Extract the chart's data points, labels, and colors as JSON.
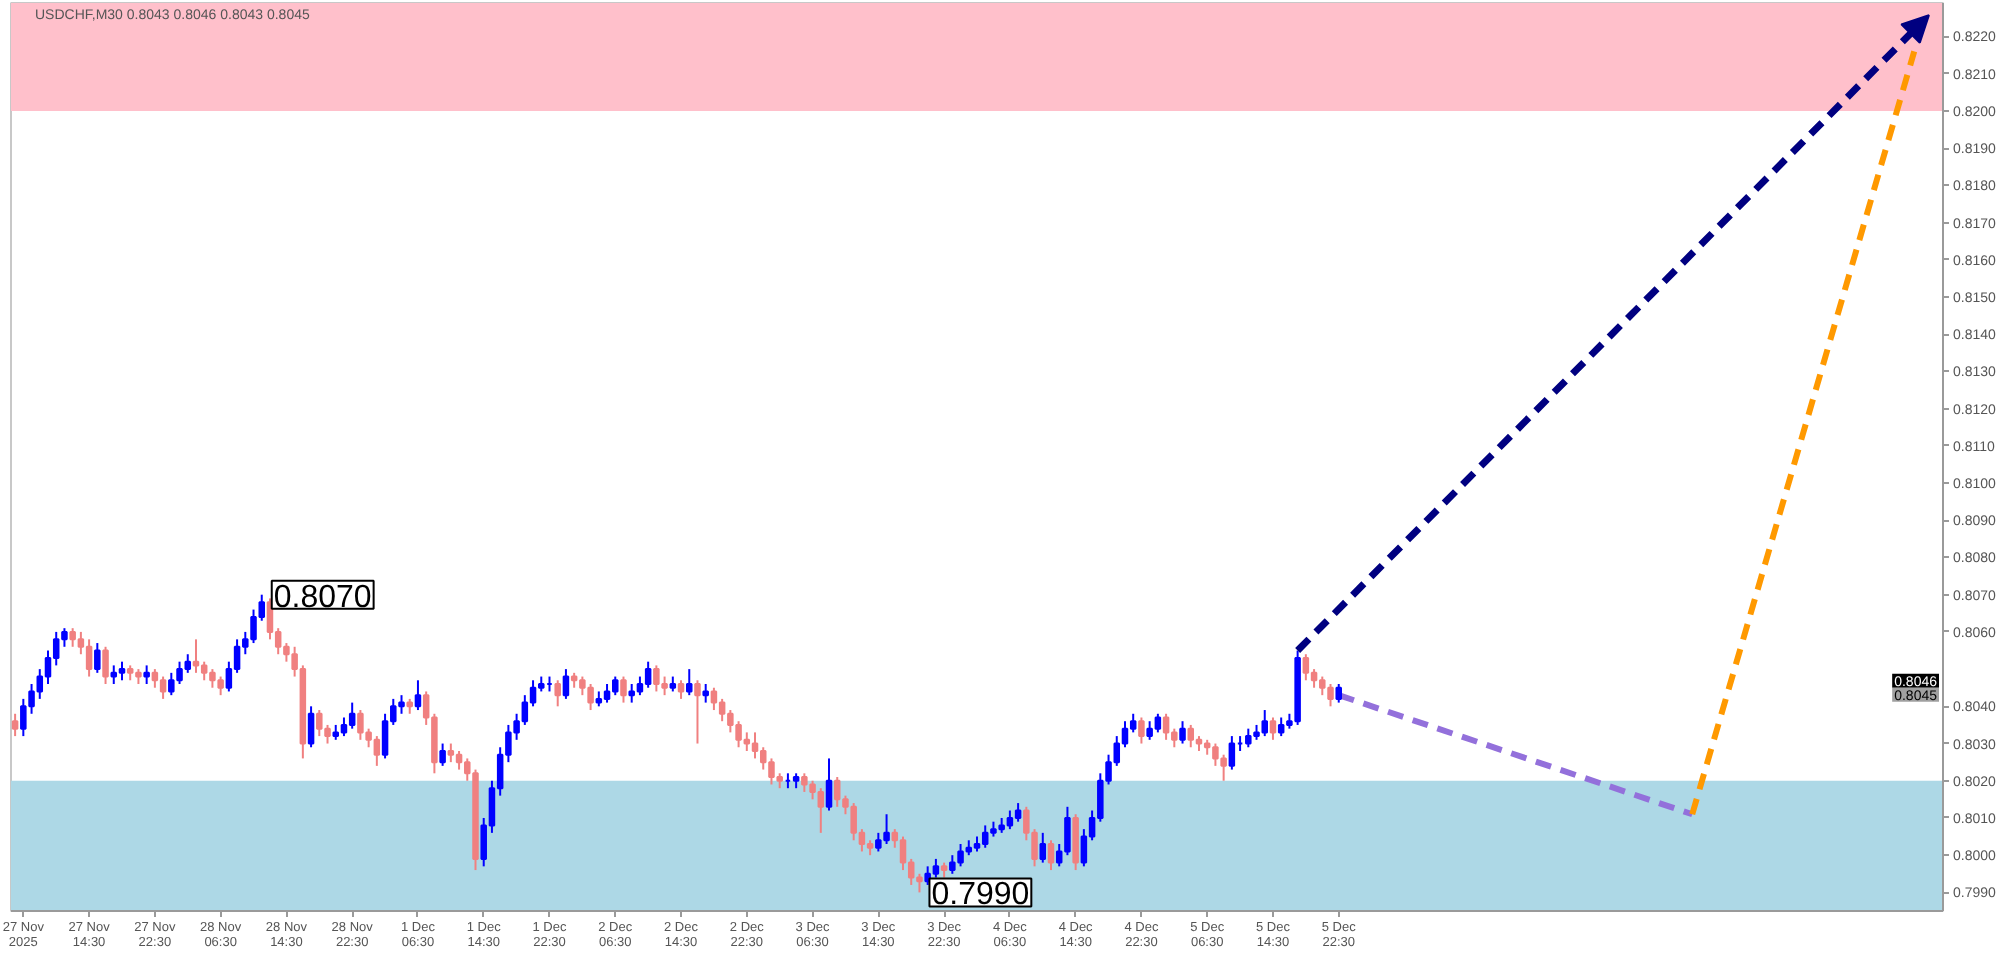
{
  "chart_data": {
    "type": "candlestick",
    "title": "USDCHF,M30 0.8043 0.8046 0.8043 0.8045",
    "categories": [
      null,
      "27 Nov 2025",
      null,
      null,
      null,
      null,
      null,
      null,
      null,
      "27 Nov 14:30",
      null,
      null,
      null,
      null,
      null,
      null,
      null,
      "27 Nov 22:30",
      null,
      null,
      null,
      null,
      null,
      null,
      null,
      "28 Nov 06:30",
      null,
      null,
      null,
      null,
      null,
      null,
      null,
      "28 Nov 14:30",
      null,
      null,
      null,
      null,
      null,
      null,
      null,
      "28 Nov 22:30",
      null,
      null,
      null,
      null,
      null,
      null,
      null,
      "1 Dec 06:30",
      null,
      null,
      null,
      null,
      null,
      null,
      null,
      "1 Dec 14:30",
      null,
      null,
      null,
      null,
      null,
      null,
      null,
      "1 Dec 22:30",
      null,
      null,
      null,
      null,
      null,
      null,
      null,
      "2 Dec 06:30",
      null,
      null,
      null,
      null,
      null,
      null,
      null,
      "2 Dec 14:30",
      null,
      null,
      null,
      null,
      null,
      null,
      null,
      "2 Dec 22:30",
      null,
      null,
      null,
      null,
      null,
      null,
      null,
      "3 Dec 06:30",
      null,
      null,
      null,
      null,
      null,
      null,
      null,
      "3 Dec 14:30",
      null,
      null,
      null,
      null,
      null,
      null,
      null,
      "3 Dec 22:30",
      null,
      null,
      null,
      null,
      null,
      null,
      null,
      "4 Dec 06:30",
      null,
      null,
      null,
      null,
      null,
      null,
      null,
      "4 Dec 14:30",
      null,
      null,
      null,
      null,
      null,
      null,
      null,
      "4 Dec 22:30",
      null,
      null,
      null,
      null,
      null,
      null,
      null,
      "5 Dec 06:30",
      null,
      null,
      null,
      null,
      null,
      null,
      null,
      "5 Dec 14:30",
      null,
      null,
      null,
      null,
      null,
      null,
      null,
      "5 Dec 22:30",
      null,
      null,
      null,
      null,
      null,
      null,
      null,
      null,
      null,
      null,
      null,
      null,
      null,
      null,
      null,
      null,
      null,
      null,
      null,
      null,
      null,
      null,
      null,
      null,
      null,
      null,
      null,
      null,
      null,
      null,
      null,
      null,
      null,
      null,
      null,
      null,
      null,
      null,
      null,
      null,
      null,
      null,
      null,
      null,
      null,
      null,
      null,
      null,
      null,
      null,
      null,
      null,
      null,
      null,
      null,
      null,
      null,
      null,
      null,
      null,
      null,
      null,
      null,
      null,
      null,
      null,
      null,
      null,
      null,
      null,
      null,
      null,
      null
    ],
    "ylim": [
      0.7985,
      0.8229
    ],
    "yticks": [
      {
        "value": 0.799,
        "label": "0.7990"
      },
      {
        "value": 0.8,
        "label": "0.8000"
      },
      {
        "value": 0.801,
        "label": "0.8010"
      },
      {
        "value": 0.802,
        "label": "0.8020"
      },
      {
        "value": 0.803,
        "label": "0.8030"
      },
      {
        "value": 0.804,
        "label": "0.8040"
      },
      {
        "value": 0.806,
        "label": "0.8060"
      },
      {
        "value": 0.807,
        "label": "0.8070"
      },
      {
        "value": 0.808,
        "label": "0.8080"
      },
      {
        "value": 0.809,
        "label": "0.8090"
      },
      {
        "value": 0.81,
        "label": "0.8100"
      },
      {
        "value": 0.811,
        "label": "0.8110"
      },
      {
        "value": 0.812,
        "label": "0.8120"
      },
      {
        "value": 0.813,
        "label": "0.8130"
      },
      {
        "value": 0.814,
        "label": "0.8140"
      },
      {
        "value": 0.815,
        "label": "0.8150"
      },
      {
        "value": 0.816,
        "label": "0.8160"
      },
      {
        "value": 0.817,
        "label": "0.8170"
      },
      {
        "value": 0.818,
        "label": "0.8180"
      },
      {
        "value": 0.819,
        "label": "0.8190"
      },
      {
        "value": 0.82,
        "label": "0.8200"
      },
      {
        "value": 0.821,
        "label": "0.8210"
      },
      {
        "value": 0.822,
        "label": "0.8220"
      }
    ],
    "bands": [
      {
        "axis": "y",
        "from": 0.82,
        "to": 0.8229,
        "color": "#ffc0cb"
      },
      {
        "axis": "y",
        "from": 0.7985,
        "to": 0.802,
        "color": "#add8e6"
      }
    ],
    "annotations": [
      "0.8070",
      "0.7990",
      "0.8046",
      "0.8045"
    ],
    "series": [
      {
        "ohlc": [
          [
            0.8036,
            0.8038,
            0.8032,
            0.8034
          ],
          [
            0.8034,
            0.8042,
            0.8032,
            0.804
          ],
          [
            0.804,
            0.8046,
            0.8038,
            0.8044
          ],
          [
            0.8044,
            0.805,
            0.8042,
            0.8048
          ],
          [
            0.8048,
            0.8055,
            0.8046,
            0.8053
          ],
          [
            0.8053,
            0.806,
            0.8051,
            0.8058
          ],
          [
            0.8058,
            0.8061,
            0.8056,
            0.806
          ],
          [
            0.806,
            0.8061,
            0.8056,
            0.8058
          ],
          [
            0.8058,
            0.806,
            0.8054,
            0.8056
          ],
          [
            0.8056,
            0.8058,
            0.8048,
            0.805
          ],
          [
            0.805,
            0.8057,
            0.8049,
            0.8055
          ],
          [
            0.8055,
            0.8056,
            0.8046,
            0.8048
          ],
          [
            0.8048,
            0.8051,
            0.8046,
            0.8049
          ],
          [
            0.8049,
            0.8052,
            0.8047,
            0.805
          ],
          [
            0.805,
            0.8051,
            0.8047,
            0.8049
          ],
          [
            0.8049,
            0.805,
            0.8046,
            0.8048
          ],
          [
            0.8048,
            0.8051,
            0.8046,
            0.8049
          ],
          [
            0.8049,
            0.805,
            0.8045,
            0.8047
          ],
          [
            0.8047,
            0.8048,
            0.8042,
            0.8044
          ],
          [
            0.8044,
            0.8049,
            0.8043,
            0.8047
          ],
          [
            0.8047,
            0.8052,
            0.8046,
            0.805
          ],
          [
            0.805,
            0.8054,
            0.8049,
            0.8052
          ],
          [
            0.8052,
            0.8058,
            0.8049,
            0.8051
          ],
          [
            0.8051,
            0.8052,
            0.8047,
            0.8049
          ],
          [
            0.8049,
            0.805,
            0.8045,
            0.8047
          ],
          [
            0.8047,
            0.8048,
            0.8043,
            0.8045
          ],
          [
            0.8045,
            0.8052,
            0.8044,
            0.805
          ],
          [
            0.805,
            0.8058,
            0.8049,
            0.8056
          ],
          [
            0.8056,
            0.806,
            0.8054,
            0.8058
          ],
          [
            0.8058,
            0.8066,
            0.8057,
            0.8064
          ],
          [
            0.8064,
            0.807,
            0.8063,
            0.8068
          ],
          [
            0.8068,
            0.8069,
            0.8058,
            0.806
          ],
          [
            0.806,
            0.8061,
            0.8054,
            0.8056
          ],
          [
            0.8056,
            0.8057,
            0.8052,
            0.8054
          ],
          [
            0.8054,
            0.8056,
            0.8048,
            0.805
          ],
          [
            0.805,
            0.8051,
            0.8026,
            0.803
          ],
          [
            0.803,
            0.804,
            0.8029,
            0.8038
          ],
          [
            0.8038,
            0.8039,
            0.8032,
            0.8034
          ],
          [
            0.8034,
            0.8035,
            0.803,
            0.8032
          ],
          [
            0.8032,
            0.8035,
            0.8031,
            0.8033
          ],
          [
            0.8033,
            0.8037,
            0.8032,
            0.8035
          ],
          [
            0.8035,
            0.8041,
            0.8034,
            0.8038
          ],
          [
            0.8038,
            0.8039,
            0.8031,
            0.8033
          ],
          [
            0.8033,
            0.8034,
            0.8029,
            0.8031
          ],
          [
            0.8031,
            0.8032,
            0.8024,
            0.8027
          ],
          [
            0.8027,
            0.8038,
            0.8026,
            0.8036
          ],
          [
            0.8036,
            0.8042,
            0.8035,
            0.804
          ],
          [
            0.804,
            0.8043,
            0.8038,
            0.8041
          ],
          [
            0.8041,
            0.8042,
            0.8038,
            0.804
          ],
          [
            0.804,
            0.8047,
            0.8039,
            0.8043
          ],
          [
            0.8043,
            0.8044,
            0.8035,
            0.8037
          ],
          [
            0.8037,
            0.8038,
            0.8022,
            0.8025
          ],
          [
            0.8025,
            0.803,
            0.8024,
            0.8028
          ],
          [
            0.8028,
            0.803,
            0.8025,
            0.8027
          ],
          [
            0.8027,
            0.8028,
            0.8023,
            0.8025
          ],
          [
            0.8025,
            0.8026,
            0.802,
            0.8022
          ],
          [
            0.8022,
            0.8023,
            0.7996,
            0.7999
          ],
          [
            0.7999,
            0.801,
            0.7997,
            0.8008
          ],
          [
            0.8008,
            0.802,
            0.8006,
            0.8018
          ],
          [
            0.8018,
            0.8029,
            0.8016,
            0.8027
          ],
          [
            0.8027,
            0.8035,
            0.8025,
            0.8033
          ],
          [
            0.8033,
            0.8038,
            0.8031,
            0.8036
          ],
          [
            0.8036,
            0.8043,
            0.8035,
            0.8041
          ],
          [
            0.8041,
            0.8047,
            0.804,
            0.8045
          ],
          [
            0.8045,
            0.8048,
            0.8044,
            0.8046
          ],
          [
            0.8046,
            0.8048,
            0.8044,
            0.8046
          ],
          [
            0.8046,
            0.8047,
            0.804,
            0.8043
          ],
          [
            0.8043,
            0.805,
            0.8042,
            0.8048
          ],
          [
            0.8048,
            0.8049,
            0.8045,
            0.8047
          ],
          [
            0.8047,
            0.8048,
            0.8043,
            0.8045
          ],
          [
            0.8045,
            0.8046,
            0.8039,
            0.8041
          ],
          [
            0.8041,
            0.8044,
            0.804,
            0.8042
          ],
          [
            0.8042,
            0.8046,
            0.8041,
            0.8044
          ],
          [
            0.8044,
            0.8048,
            0.8043,
            0.8047
          ],
          [
            0.8047,
            0.8048,
            0.8041,
            0.8043
          ],
          [
            0.8043,
            0.8046,
            0.8041,
            0.8044
          ],
          [
            0.8044,
            0.8048,
            0.8043,
            0.8046
          ],
          [
            0.8046,
            0.8052,
            0.8045,
            0.805
          ],
          [
            0.805,
            0.8051,
            0.8044,
            0.8046
          ],
          [
            0.8046,
            0.8048,
            0.8043,
            0.8045
          ],
          [
            0.8045,
            0.8048,
            0.8044,
            0.8046
          ],
          [
            0.8046,
            0.8047,
            0.8042,
            0.8044
          ],
          [
            0.8044,
            0.805,
            0.8043,
            0.8046
          ],
          [
            0.8046,
            0.8047,
            0.803,
            0.8043
          ],
          [
            0.8043,
            0.8046,
            0.8041,
            0.8044
          ],
          [
            0.8044,
            0.8045,
            0.8039,
            0.8041
          ],
          [
            0.8041,
            0.8042,
            0.8036,
            0.8038
          ],
          [
            0.8038,
            0.8039,
            0.8033,
            0.8035
          ],
          [
            0.8035,
            0.8036,
            0.8029,
            0.8031
          ],
          [
            0.8031,
            0.8033,
            0.8028,
            0.803
          ],
          [
            0.803,
            0.8033,
            0.8026,
            0.8028
          ],
          [
            0.8028,
            0.8029,
            0.8023,
            0.8025
          ],
          [
            0.8025,
            0.8026,
            0.8019,
            0.8021
          ],
          [
            0.8021,
            0.8022,
            0.8018,
            0.802
          ],
          [
            0.802,
            0.8022,
            0.8018,
            0.802
          ],
          [
            0.802,
            0.8022,
            0.8018,
            0.8021
          ],
          [
            0.8021,
            0.8022,
            0.8017,
            0.8019
          ],
          [
            0.8019,
            0.802,
            0.8015,
            0.8017
          ],
          [
            0.8017,
            0.8018,
            0.8006,
            0.8013
          ],
          [
            0.8013,
            0.8026,
            0.8012,
            0.802
          ],
          [
            0.802,
            0.8021,
            0.8013,
            0.8015
          ],
          [
            0.8015,
            0.8016,
            0.8011,
            0.8013
          ],
          [
            0.8013,
            0.8014,
            0.8004,
            0.8006
          ],
          [
            0.8006,
            0.8007,
            0.8001,
            0.8003
          ],
          [
            0.8003,
            0.8004,
            0.8,
            0.8002
          ],
          [
            0.8002,
            0.8006,
            0.8001,
            0.8004
          ],
          [
            0.8004,
            0.8011,
            0.8003,
            0.8006
          ],
          [
            0.8006,
            0.8007,
            0.8002,
            0.8004
          ],
          [
            0.8004,
            0.8005,
            0.7996,
            0.7998
          ],
          [
            0.7998,
            0.7999,
            0.7992,
            0.7994
          ],
          [
            0.7994,
            0.7995,
            0.799,
            0.7993
          ],
          [
            0.7993,
            0.7997,
            0.7992,
            0.7995
          ],
          [
            0.7995,
            0.7999,
            0.7994,
            0.7997
          ],
          [
            0.7997,
            0.7998,
            0.7994,
            0.7996
          ],
          [
            0.7996,
            0.8,
            0.7995,
            0.7998
          ],
          [
            0.7998,
            0.8003,
            0.7997,
            0.8001
          ],
          [
            0.8001,
            0.8004,
            0.8,
            0.8002
          ],
          [
            0.8002,
            0.8005,
            0.8001,
            0.8003
          ],
          [
            0.8003,
            0.8008,
            0.8002,
            0.8006
          ],
          [
            0.8006,
            0.8009,
            0.8005,
            0.8007
          ],
          [
            0.8007,
            0.801,
            0.8006,
            0.8008
          ],
          [
            0.8008,
            0.8012,
            0.8007,
            0.801
          ],
          [
            0.801,
            0.8014,
            0.8009,
            0.8012
          ],
          [
            0.8012,
            0.8013,
            0.8004,
            0.8006
          ],
          [
            0.8006,
            0.8007,
            0.7997,
            0.7999
          ],
          [
            0.7999,
            0.8006,
            0.7998,
            0.8003
          ],
          [
            0.8003,
            0.8004,
            0.7996,
            0.7998
          ],
          [
            0.7998,
            0.8003,
            0.7997,
            0.8001
          ],
          [
            0.8001,
            0.8013,
            0.8,
            0.801
          ],
          [
            0.801,
            0.8011,
            0.7996,
            0.7998
          ],
          [
            0.7998,
            0.8007,
            0.7997,
            0.8005
          ],
          [
            0.8005,
            0.8012,
            0.8004,
            0.801
          ],
          [
            0.801,
            0.8022,
            0.8009,
            0.802
          ],
          [
            0.802,
            0.8027,
            0.8019,
            0.8025
          ],
          [
            0.8025,
            0.8032,
            0.8024,
            0.803
          ],
          [
            0.803,
            0.8036,
            0.8029,
            0.8034
          ],
          [
            0.8034,
            0.8038,
            0.8033,
            0.8036
          ],
          [
            0.8036,
            0.8037,
            0.803,
            0.8032
          ],
          [
            0.8032,
            0.8036,
            0.8031,
            0.8034
          ],
          [
            0.8034,
            0.8038,
            0.8033,
            0.8037
          ],
          [
            0.8037,
            0.8038,
            0.8031,
            0.8033
          ],
          [
            0.8033,
            0.8034,
            0.8029,
            0.8031
          ],
          [
            0.8031,
            0.8036,
            0.803,
            0.8034
          ],
          [
            0.8034,
            0.8035,
            0.8029,
            0.8031
          ],
          [
            0.8031,
            0.8032,
            0.8028,
            0.803
          ],
          [
            0.803,
            0.8031,
            0.8027,
            0.8029
          ],
          [
            0.8029,
            0.803,
            0.8024,
            0.8026
          ],
          [
            0.8026,
            0.8027,
            0.802,
            0.8024
          ],
          [
            0.8024,
            0.8032,
            0.8023,
            0.803
          ],
          [
            0.803,
            0.8032,
            0.8028,
            0.803
          ],
          [
            0.803,
            0.8034,
            0.8029,
            0.8032
          ],
          [
            0.8032,
            0.8035,
            0.8031,
            0.8033
          ],
          [
            0.8033,
            0.8039,
            0.8032,
            0.8036
          ],
          [
            0.8036,
            0.8037,
            0.8031,
            0.8033
          ],
          [
            0.8033,
            0.8037,
            0.8032,
            0.8035
          ],
          [
            0.8035,
            0.8038,
            0.8034,
            0.8036
          ],
          [
            0.8036,
            0.8055,
            0.8035,
            0.8053
          ],
          [
            0.8053,
            0.8054,
            0.8047,
            0.8049
          ],
          [
            0.8049,
            0.805,
            0.8045,
            0.8047
          ],
          [
            0.8047,
            0.8048,
            0.8043,
            0.8045
          ],
          [
            0.8045,
            0.8046,
            0.804,
            0.8042
          ],
          [
            0.8042,
            0.8046,
            0.8041,
            0.8045
          ],
          null,
          null,
          null,
          null,
          null,
          null,
          null,
          null,
          null,
          null,
          null,
          null,
          null,
          null,
          null,
          null,
          null,
          null,
          null,
          null,
          null,
          null,
          null,
          null,
          null,
          null,
          null,
          null,
          null,
          null,
          null,
          null,
          null,
          null,
          null,
          null,
          null,
          null,
          null,
          null,
          null,
          null,
          null,
          null,
          null,
          null,
          null,
          null,
          null,
          null,
          null,
          null,
          null,
          null,
          null,
          null,
          null,
          null,
          null,
          null,
          null,
          null,
          null,
          null,
          null,
          null,
          null,
          null,
          null,
          null,
          null,
          null,
          null
        ],
        "colors": [
          "#f08080",
          "#0000ff",
          "#0000ff",
          "#0000ff",
          "#0000ff",
          "#0000ff",
          "#0000ff",
          "#f08080",
          "#f08080",
          "#f08080",
          "#0000ff",
          "#f08080",
          "#0000ff",
          "#0000ff",
          "#f08080",
          "#f08080",
          "#0000ff",
          "#f08080",
          "#f08080",
          "#0000ff",
          "#0000ff",
          "#0000ff",
          "#f08080",
          "#f08080",
          "#f08080",
          "#f08080",
          "#0000ff",
          "#0000ff",
          "#0000ff",
          "#0000ff",
          "#0000ff",
          "#f08080",
          "#f08080",
          "#f08080",
          "#f08080",
          "#f08080",
          "#0000ff",
          "#f08080",
          "#f08080",
          "#0000ff",
          "#0000ff",
          "#0000ff",
          "#f08080",
          "#f08080",
          "#f08080",
          "#0000ff",
          "#0000ff",
          "#0000ff",
          "#f08080",
          "#0000ff",
          "#f08080",
          "#f08080",
          "#0000ff",
          "#f08080",
          "#f08080",
          "#f08080",
          "#f08080",
          "#0000ff",
          "#0000ff",
          "#0000ff",
          "#0000ff",
          "#0000ff",
          "#0000ff",
          "#0000ff",
          "#0000ff",
          "#0000ff",
          "#f08080",
          "#0000ff",
          "#f08080",
          "#f08080",
          "#f08080",
          "#0000ff",
          "#0000ff",
          "#0000ff",
          "#f08080",
          "#0000ff",
          "#0000ff",
          "#0000ff",
          "#f08080",
          "#f08080",
          "#0000ff",
          "#f08080",
          "#0000ff",
          "#f08080",
          "#0000ff",
          "#f08080",
          "#f08080",
          "#f08080",
          "#f08080",
          "#f08080",
          "#f08080",
          "#f08080",
          "#f08080",
          "#f08080",
          "#0000ff",
          "#0000ff",
          "#f08080",
          "#f08080",
          "#f08080",
          "#0000ff",
          "#f08080",
          "#f08080",
          "#f08080",
          "#f08080",
          "#f08080",
          "#0000ff",
          "#0000ff",
          "#f08080",
          "#f08080",
          "#f08080",
          "#f08080",
          "#0000ff",
          "#0000ff",
          "#f08080",
          "#0000ff",
          "#0000ff",
          "#0000ff",
          "#0000ff",
          "#0000ff",
          "#0000ff",
          "#0000ff",
          "#0000ff",
          "#0000ff",
          "#f08080",
          "#f08080",
          "#0000ff",
          "#f08080",
          "#0000ff",
          "#0000ff",
          "#f08080",
          "#0000ff",
          "#0000ff",
          "#0000ff",
          "#0000ff",
          "#0000ff",
          "#0000ff",
          "#0000ff",
          "#f08080",
          "#0000ff",
          "#0000ff",
          "#f08080",
          "#f08080",
          "#0000ff",
          "#f08080",
          "#f08080",
          "#f08080",
          "#f08080",
          "#f08080",
          "#0000ff",
          "#0000ff",
          "#0000ff",
          "#0000ff",
          "#0000ff",
          "#f08080",
          "#0000ff",
          "#0000ff",
          "#0000ff",
          "#f08080",
          "#f08080",
          "#f08080",
          "#f08080",
          "#0000ff",
          null,
          null,
          null,
          null,
          null,
          null,
          null,
          null,
          null,
          null,
          null,
          null,
          null,
          null,
          null,
          null,
          null,
          null,
          null,
          null,
          null,
          null,
          null,
          null,
          null,
          null,
          null,
          null,
          null,
          null,
          null,
          null,
          null,
          null,
          null,
          null,
          null,
          null,
          null,
          null,
          null,
          null,
          null,
          null,
          null,
          null,
          null,
          null,
          null,
          null,
          null,
          null,
          null,
          null,
          null,
          null,
          null,
          null,
          null,
          null,
          null,
          null,
          null,
          null,
          null,
          null,
          null,
          null,
          null,
          null,
          null,
          null,
          null
        ]
      },
      {
        "type": "line",
        "color": "#9370db",
        "line_style": "dashed",
        "values": [
          null,
          null,
          null,
          null,
          null,
          null,
          null,
          null,
          null,
          null,
          null,
          null,
          null,
          null,
          null,
          null,
          null,
          null,
          null,
          null,
          null,
          null,
          null,
          null,
          null,
          null,
          null,
          null,
          null,
          null,
          null,
          null,
          null,
          null,
          null,
          null,
          null,
          null,
          null,
          null,
          null,
          null,
          null,
          null,
          null,
          null,
          null,
          null,
          null,
          null,
          null,
          null,
          null,
          null,
          null,
          null,
          null,
          null,
          null,
          null,
          null,
          null,
          null,
          null,
          null,
          null,
          null,
          null,
          null,
          null,
          null,
          null,
          null,
          null,
          null,
          null,
          null,
          null,
          null,
          null,
          null,
          null,
          null,
          null,
          null,
          null,
          null,
          null,
          null,
          null,
          null,
          null,
          null,
          null,
          null,
          null,
          null,
          null,
          null,
          null,
          null,
          null,
          null,
          null,
          null,
          null,
          null,
          null,
          null,
          null,
          null,
          null,
          null,
          null,
          null,
          null,
          null,
          null,
          null,
          null,
          null,
          null,
          null,
          null,
          null,
          null,
          null,
          null,
          null,
          null,
          null,
          null,
          null,
          null,
          null,
          null,
          null,
          null,
          null,
          null,
          null,
          null,
          null,
          null,
          null,
          null,
          null,
          null,
          null,
          null,
          null,
          null,
          null,
          null,
          null,
          null,
          null,
          null,
          null,
          null,
          null,
          0.8043,
          null,
          null,
          null,
          null,
          null,
          null,
          null,
          null,
          null,
          null,
          null,
          null,
          null,
          null,
          null,
          null,
          null,
          null,
          null,
          null,
          null,
          null,
          null,
          null,
          null,
          null,
          null,
          null,
          null,
          null,
          null,
          null,
          null,
          null,
          null,
          null,
          null,
          null,
          null,
          null,
          null,
          null,
          0.8011,
          null,
          null,
          null,
          null,
          null,
          null,
          null,
          null,
          null,
          null,
          null,
          null,
          null,
          null,
          null,
          null,
          null,
          null,
          null,
          null,
          null,
          null,
          null,
          null,
          null,
          null,
          null,
          null,
          null,
          null
        ]
      },
      {
        "type": "line",
        "color": "#ff9900",
        "line_style": "dashed",
        "values": [
          null,
          null,
          null,
          null,
          null,
          null,
          null,
          null,
          null,
          null,
          null,
          null,
          null,
          null,
          null,
          null,
          null,
          null,
          null,
          null,
          null,
          null,
          null,
          null,
          null,
          null,
          null,
          null,
          null,
          null,
          null,
          null,
          null,
          null,
          null,
          null,
          null,
          null,
          null,
          null,
          null,
          null,
          null,
          null,
          null,
          null,
          null,
          null,
          null,
          null,
          null,
          null,
          null,
          null,
          null,
          null,
          null,
          null,
          null,
          null,
          null,
          null,
          null,
          null,
          null,
          null,
          null,
          null,
          null,
          null,
          null,
          null,
          null,
          null,
          null,
          null,
          null,
          null,
          null,
          null,
          null,
          null,
          null,
          null,
          null,
          null,
          null,
          null,
          null,
          null,
          null,
          null,
          null,
          null,
          null,
          null,
          null,
          null,
          null,
          null,
          null,
          null,
          null,
          null,
          null,
          null,
          null,
          null,
          null,
          null,
          null,
          null,
          null,
          null,
          null,
          null,
          null,
          null,
          null,
          null,
          null,
          null,
          null,
          null,
          null,
          null,
          null,
          null,
          null,
          null,
          null,
          null,
          null,
          null,
          null,
          null,
          null,
          null,
          null,
          null,
          null,
          null,
          null,
          null,
          null,
          null,
          null,
          null,
          null,
          null,
          null,
          null,
          null,
          null,
          null,
          null,
          null,
          null,
          null,
          null,
          null,
          null,
          null,
          null,
          null,
          null,
          null,
          null,
          null,
          null,
          null,
          null,
          null,
          null,
          null,
          null,
          null,
          null,
          null,
          null,
          null,
          null,
          null,
          null,
          null,
          null,
          null,
          null,
          null,
          null,
          null,
          null,
          null,
          null,
          null,
          null,
          null,
          null,
          null,
          null,
          null,
          null,
          null,
          null,
          0.8011,
          null,
          null,
          null,
          null,
          null,
          null,
          null,
          null,
          null,
          null,
          null,
          null,
          null,
          null,
          null,
          null,
          null,
          null,
          null,
          null,
          null,
          null,
          null,
          null,
          null,
          null,
          0.8216,
          null,
          null,
          null
        ]
      }
    ]
  }
}
